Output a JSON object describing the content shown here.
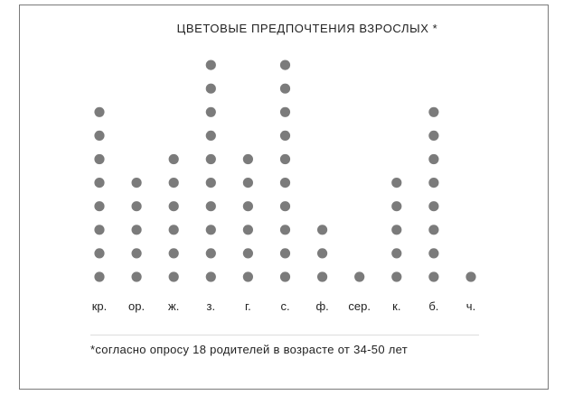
{
  "chart_data": {
    "type": "scatter",
    "subtype": "dot-plot",
    "title": "ЦВЕТОВЫЕ ПРЕДПОЧТЕНИЯ ВЗРОСЛЫХ *",
    "categories": [
      "кр.",
      "ор.",
      "ж.",
      "з.",
      "г.",
      "с.",
      "ф.",
      "сер.",
      "к.",
      "б.",
      "ч."
    ],
    "values": [
      8,
      5,
      6,
      10,
      6,
      10,
      3,
      1,
      5,
      8,
      1
    ],
    "footnote": "*согласно опросу 18 родителей в возрасте от 34-50 лет",
    "dot_color": "#7b7b7b"
  }
}
